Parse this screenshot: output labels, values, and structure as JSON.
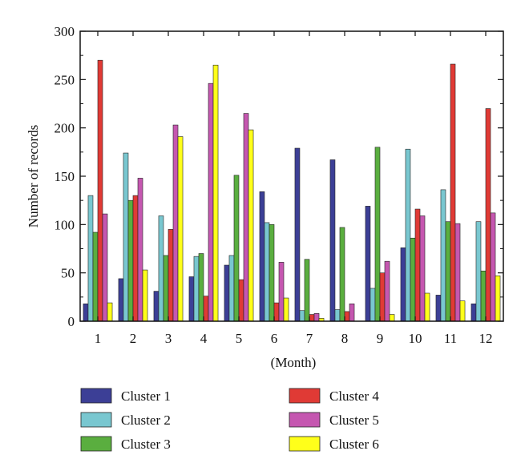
{
  "chart_data": {
    "type": "bar",
    "xlabel": "(Month)",
    "ylabel": "Number of records",
    "ylim": [
      0,
      300
    ],
    "yticks": [
      0,
      50,
      100,
      150,
      200,
      250,
      300
    ],
    "categories": [
      "1",
      "2",
      "3",
      "4",
      "5",
      "6",
      "7",
      "8",
      "9",
      "10",
      "11",
      "12"
    ],
    "legend_position": "bottom",
    "grid": false,
    "series": [
      {
        "name": "Cluster 1",
        "color": "#3c3f96",
        "values": [
          18,
          44,
          31,
          46,
          58,
          134,
          179,
          167,
          119,
          76,
          27,
          18
        ]
      },
      {
        "name": "Cluster 2",
        "color": "#79c7d0",
        "values": [
          130,
          174,
          109,
          67,
          68,
          102,
          11,
          12,
          34,
          178,
          136,
          103
        ]
      },
      {
        "name": "Cluster 3",
        "color": "#5aae3f",
        "values": [
          92,
          125,
          68,
          70,
          151,
          100,
          64,
          97,
          180,
          86,
          103,
          52
        ]
      },
      {
        "name": "Cluster 4",
        "color": "#e03a35",
        "values": [
          270,
          130,
          95,
          26,
          43,
          19,
          7,
          10,
          50,
          116,
          266,
          220
        ]
      },
      {
        "name": "Cluster 5",
        "color": "#c557b0",
        "values": [
          111,
          148,
          203,
          246,
          215,
          61,
          8,
          18,
          62,
          109,
          101,
          112
        ]
      },
      {
        "name": "Cluster 6",
        "color": "#ffff1a",
        "values": [
          19,
          53,
          191,
          265,
          198,
          24,
          3,
          0,
          7,
          29,
          21,
          47
        ]
      }
    ]
  }
}
